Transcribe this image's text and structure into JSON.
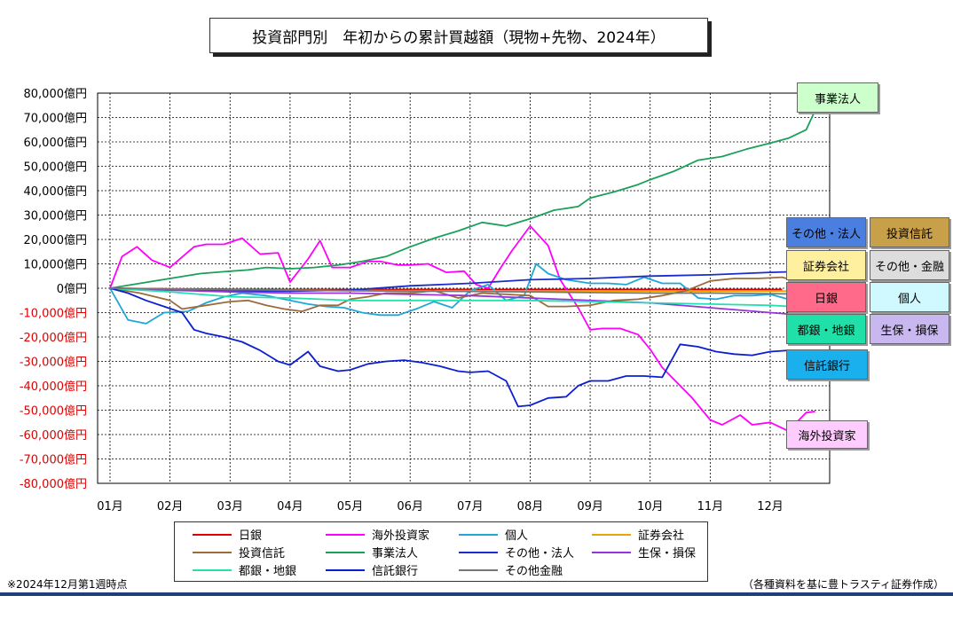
{
  "title": "投資部門別　年初からの累計買越額（現物+先物、2024年）",
  "note_left": "※2024年12月第1週時点",
  "note_right": "（各種資料を基に豊トラスティ証券作成）",
  "chart_data": {
    "type": "line",
    "categories": [
      "01月",
      "02月",
      "03月",
      "04月",
      "05月",
      "06月",
      "07月",
      "08月",
      "09月",
      "10月",
      "11月",
      "12月"
    ],
    "y_ticks": [
      "80,000億円",
      "70,000億円",
      "60,000億円",
      "50,000億円",
      "40,000億円",
      "30,000億円",
      "20,000億円",
      "10,000億円",
      "0億円",
      "-10,000億円",
      "-20,000億円",
      "-30,000億円",
      "-40,000億円",
      "-50,000億円",
      "-60,000億円",
      "-70,000億円",
      "-80,000億円"
    ],
    "ylim": [
      -80000,
      80000
    ],
    "x_range": [
      0,
      11.8
    ],
    "grid": true,
    "series": [
      {
        "name": "日銀",
        "color": "#e00000",
        "x": [
          0,
          1,
          2,
          3,
          4,
          5,
          6,
          7,
          8,
          9,
          10,
          11,
          11.2
        ],
        "values": [
          0,
          -300,
          -400,
          -500,
          -500,
          -500,
          -500,
          -500,
          -500,
          -500,
          -500,
          -500,
          -500
        ]
      },
      {
        "name": "海外投資家",
        "color": "#ff00ff",
        "x": [
          0,
          0.2,
          0.45,
          0.7,
          1,
          1.4,
          1.6,
          1.9,
          2.2,
          2.5,
          2.8,
          3,
          3.3,
          3.5,
          3.7,
          4,
          4.3,
          4.5,
          4.8,
          5,
          5.3,
          5.6,
          5.9,
          6.1,
          6.3,
          6.5,
          6.7,
          7,
          7.3,
          7.5,
          7.8,
          8,
          8.2,
          8.5,
          8.8,
          9,
          9.2,
          9.5,
          9.7,
          10,
          10.2,
          10.5,
          10.7,
          11,
          11.3,
          11.6,
          11.75
        ],
        "values": [
          0,
          13000,
          17000,
          11500,
          8500,
          17000,
          18000,
          18000,
          20500,
          14000,
          14500,
          2500,
          12000,
          19500,
          8500,
          8500,
          11000,
          11000,
          9500,
          9500,
          10000,
          6500,
          7000,
          1500,
          0,
          8000,
          15500,
          25500,
          17500,
          3500,
          -8000,
          -17000,
          -16500,
          -16500,
          -19000,
          -25000,
          -32500,
          -40000,
          -45000,
          -54000,
          -56000,
          -52000,
          -56000,
          -55000,
          -58500,
          -51000,
          -50500
        ]
      },
      {
        "name": "個人",
        "color": "#1fa7d6",
        "x": [
          0,
          0.3,
          0.6,
          0.9,
          1.3,
          1.6,
          1.9,
          2.2,
          2.6,
          3,
          3.3,
          3.6,
          3.9,
          4.2,
          4.5,
          4.8,
          5.1,
          5.4,
          5.7,
          6,
          6.3,
          6.6,
          6.9,
          7.1,
          7.3,
          7.6,
          8,
          8.3,
          8.6,
          8.9,
          9.2,
          9.5,
          9.8,
          10.1,
          10.4,
          10.7,
          11,
          11.3,
          11.6,
          11.8
        ],
        "values": [
          0,
          -13000,
          -14500,
          -10000,
          -9500,
          -6000,
          -3500,
          -2000,
          -3000,
          -5000,
          -6500,
          -7500,
          -8000,
          -10000,
          -11000,
          -11000,
          -8500,
          -5500,
          -8000,
          -1000,
          1500,
          -5000,
          -3000,
          10000,
          6000,
          3500,
          2000,
          2000,
          1500,
          4500,
          2000,
          2000,
          -4000,
          -4500,
          -3000,
          -3000,
          -2500,
          -4500,
          -3000,
          -7500
        ]
      },
      {
        "name": "証券会社",
        "color": "#e8a400",
        "x": [
          0,
          1,
          2,
          3,
          4,
          5,
          6,
          7,
          8,
          9,
          10,
          11,
          11.75
        ],
        "values": [
          0,
          -400,
          -600,
          -800,
          -900,
          -1000,
          -1000,
          -1100,
          -1100,
          -1200,
          -1200,
          -1200,
          -1100
        ]
      },
      {
        "name": "投資信託",
        "color": "#9c6b3c",
        "x": [
          0,
          0.5,
          1,
          1.2,
          1.6,
          2,
          2.3,
          2.6,
          2.9,
          3.2,
          3.5,
          3.8,
          4,
          4.3,
          4.6,
          5,
          5.4,
          5.8,
          6.2,
          6.6,
          7,
          7.3,
          7.6,
          8,
          8.4,
          8.8,
          9.2,
          9.6,
          10,
          10.4,
          10.8,
          11.2,
          11.5,
          11.75
        ],
        "values": [
          0,
          -2000,
          -5000,
          -8500,
          -7000,
          -5500,
          -5000,
          -7000,
          -8500,
          -9500,
          -7000,
          -7000,
          -4500,
          -3500,
          -2000,
          -2000,
          -1000,
          -4000,
          -2000,
          -2500,
          -3000,
          -7500,
          -7500,
          -7000,
          -5000,
          -4500,
          -3000,
          -1000,
          3000,
          4000,
          4000,
          4500,
          2500,
          5500
        ]
      },
      {
        "name": "事業法人",
        "color": "#1aa05a",
        "x": [
          0,
          0.5,
          1,
          1.5,
          2,
          2.3,
          2.6,
          3,
          3.4,
          3.8,
          4.2,
          4.6,
          5,
          5.4,
          5.8,
          6.2,
          6.6,
          7,
          7.4,
          7.8,
          8,
          8.4,
          8.8,
          9,
          9.4,
          9.8,
          10.2,
          10.6,
          11,
          11.3,
          11.6,
          11.75
        ],
        "values": [
          0,
          2000,
          4000,
          6000,
          7000,
          7500,
          8500,
          8000,
          8500,
          9500,
          11000,
          13000,
          17000,
          20500,
          23500,
          27000,
          25500,
          28500,
          32000,
          33500,
          37000,
          39500,
          42500,
          44500,
          48000,
          52500,
          54000,
          57000,
          59500,
          61500,
          65000,
          73000
        ]
      },
      {
        "name": "その他・法人",
        "color": "#1a2dcc",
        "x": [
          0,
          1,
          2,
          3,
          4,
          5,
          6,
          7,
          8,
          9,
          10,
          11,
          11.75
        ],
        "values": [
          0,
          -700,
          -1200,
          -1200,
          -800,
          1000,
          2000,
          3500,
          4000,
          5000,
          5500,
          6500,
          7000
        ]
      },
      {
        "name": "生保・損保",
        "color": "#9933dd",
        "x": [
          0,
          1,
          2,
          3,
          4,
          5,
          6,
          7,
          8,
          9,
          10,
          11,
          11.75
        ],
        "values": [
          0,
          -800,
          -1500,
          -2000,
          -2000,
          -2500,
          -3000,
          -4000,
          -5000,
          -6000,
          -8000,
          -10000,
          -11500
        ]
      },
      {
        "name": "都銀・地銀",
        "color": "#22e0b0",
        "x": [
          0,
          1,
          2,
          3,
          4,
          5,
          6,
          7,
          8,
          9,
          10,
          11,
          11.75
        ],
        "values": [
          0,
          -1500,
          -3500,
          -4000,
          -5000,
          -5000,
          -5000,
          -5000,
          -5500,
          -6000,
          -6500,
          -7000,
          -8000
        ]
      },
      {
        "name": "信託銀行",
        "color": "#0b1fd0",
        "x": [
          0,
          0.3,
          0.6,
          0.9,
          1.2,
          1.4,
          1.6,
          1.9,
          2.2,
          2.5,
          2.8,
          3,
          3.3,
          3.5,
          3.8,
          4,
          4.3,
          4.6,
          4.9,
          5.2,
          5.5,
          5.8,
          6,
          6.3,
          6.6,
          6.8,
          7,
          7.3,
          7.6,
          7.8,
          8,
          8.3,
          8.6,
          8.9,
          9.2,
          9.5,
          9.8,
          10.1,
          10.4,
          10.7,
          11,
          11.3,
          11.6,
          11.75
        ],
        "values": [
          0,
          -2000,
          -5000,
          -7500,
          -10000,
          -17000,
          -18500,
          -20000,
          -22000,
          -25500,
          -30000,
          -31500,
          -26000,
          -32000,
          -34000,
          -33500,
          -31000,
          -30000,
          -29500,
          -30500,
          -32000,
          -34000,
          -34500,
          -34000,
          -38000,
          -48500,
          -48000,
          -45000,
          -44500,
          -40000,
          -38000,
          -38000,
          -36000,
          -36000,
          -36500,
          -23000,
          -24000,
          -26000,
          -27000,
          -27500,
          -26000,
          -25500,
          -25500,
          -27000
        ]
      },
      {
        "name": "その他金融",
        "color": "#777777",
        "x": [
          0,
          1,
          2,
          3,
          4,
          5,
          6,
          7,
          8,
          9,
          10,
          11,
          11.75
        ],
        "values": [
          0,
          -300,
          -500,
          -800,
          -1000,
          -1200,
          -1300,
          -1500,
          -1800,
          -2000,
          -2000,
          -2200,
          -2500
        ]
      }
    ]
  },
  "end_labels": [
    {
      "text": "事業法人",
      "bg": "#ccffcc"
    },
    {
      "text": "その他・法人",
      "bg": "#4a7fe0"
    },
    {
      "text": "投資信託",
      "bg": "#c9a04a"
    },
    {
      "text": "証券会社",
      "bg": "#fff0a0"
    },
    {
      "text": "その他・金融",
      "bg": "#dddddd"
    },
    {
      "text": "日銀",
      "bg": "#ff6a8a"
    },
    {
      "text": "個人",
      "bg": "#cff8ff"
    },
    {
      "text": "都銀・地銀",
      "bg": "#1fe0a8"
    },
    {
      "text": "生保・損保",
      "bg": "#c9b8f0"
    },
    {
      "text": "信託銀行",
      "bg": "#1ab0ee"
    },
    {
      "text": "海外投資家",
      "bg": "#ffccff"
    }
  ]
}
